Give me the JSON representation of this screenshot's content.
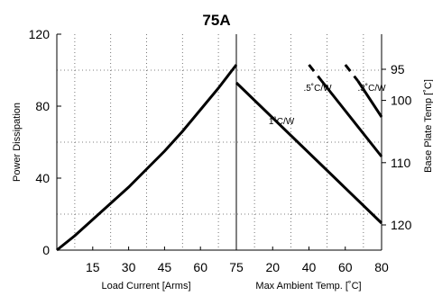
{
  "chart_data": {
    "type": "line",
    "title": "75A",
    "ylabel_left": "Power Dissipation",
    "ylabel_right": "Base Plate Temp [˚C]",
    "left_panel": {
      "xlabel": "Load Current  [Arms]",
      "xlim": [
        0,
        75
      ],
      "xticks": [
        "15",
        "30",
        "45",
        "60",
        "75"
      ],
      "xtick_values": [
        15,
        30,
        45,
        60,
        75
      ],
      "ylim": [
        0,
        120
      ],
      "yticks": [
        "0",
        "40",
        "80",
        "120"
      ],
      "ytick_values": [
        0,
        40,
        80,
        120
      ],
      "series": [
        {
          "x": [
            0,
            7.5,
            15,
            22.5,
            30,
            37.5,
            45,
            52.5,
            60,
            67.5,
            75
          ],
          "y": [
            0,
            8,
            17,
            26,
            35,
            45,
            55,
            66,
            78,
            90,
            103
          ]
        }
      ]
    },
    "right_panel": {
      "xlabel": "Max Ambient Temp. [˚C]",
      "xlim": [
        0,
        80
      ],
      "xticks": [
        "75",
        "20",
        "40",
        "60",
        "80"
      ],
      "xtick_values": [
        0,
        20,
        40,
        60,
        80
      ],
      "right_yticks": [
        "95",
        "100",
        "110",
        "120"
      ],
      "right_ytick_values": [
        95,
        100,
        110,
        120
      ],
      "series": [
        {
          "name": "1˚C/W",
          "x": [
            0,
            80
          ],
          "y": [
            93,
            15
          ]
        },
        {
          "name": ".5˚C/W",
          "x": [
            40,
            47,
            80
          ],
          "y": [
            103,
            94,
            52
          ]
        },
        {
          "name": ".3˚C/W",
          "x": [
            60,
            67,
            80
          ],
          "y": [
            103,
            94,
            74
          ]
        }
      ]
    },
    "grid": true
  }
}
